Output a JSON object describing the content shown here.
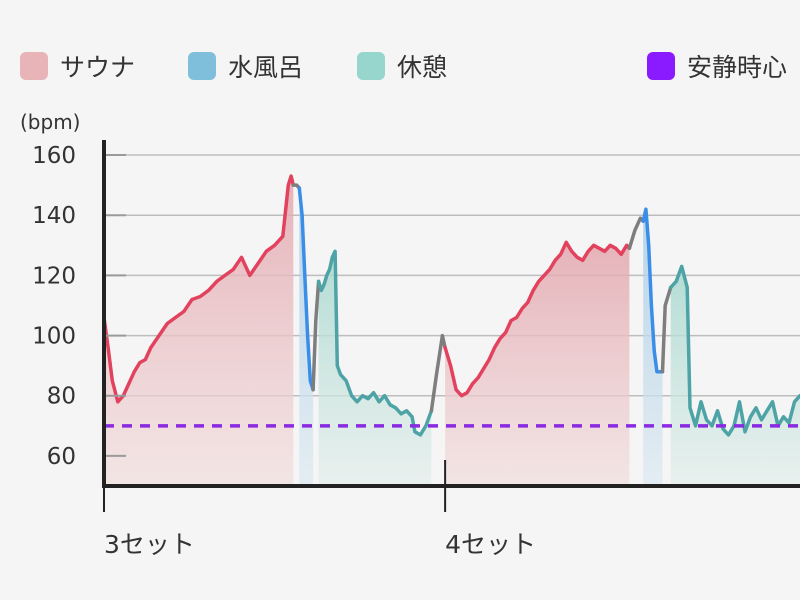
{
  "legend": [
    {
      "label": "サウナ",
      "color": "#e8b4b8"
    },
    {
      "label": "水風呂",
      "color": "#7fbfdc"
    },
    {
      "label": "休憩",
      "color": "#96d6cc"
    },
    {
      "label": "安静時心",
      "color": "#8a1aff"
    }
  ],
  "unit_label": "(bpm)",
  "chart_data": {
    "type": "line",
    "ylabel": "(bpm)",
    "ylim": [
      50,
      165
    ],
    "yticks": [
      60,
      80,
      100,
      120,
      140,
      160
    ],
    "grid": true,
    "resting_hr": 70,
    "categories": [
      "3セット",
      "4セット"
    ],
    "colors": {
      "sauna": "#e2425e",
      "cold": "#3a8ee8",
      "rest": "#4da3a5",
      "transition": "#7e7e7e",
      "resting": "#8a2be2"
    },
    "series": [
      {
        "name": "サウナ",
        "values": [
          [
            0.0,
            106
          ],
          [
            1.5,
            96
          ],
          [
            3,
            85
          ],
          [
            5,
            78
          ],
          [
            7,
            80
          ],
          [
            9,
            84
          ],
          [
            11,
            88
          ],
          [
            13,
            91
          ],
          [
            15,
            92
          ],
          [
            17,
            96
          ],
          [
            20,
            100
          ],
          [
            23,
            104
          ],
          [
            26,
            106
          ],
          [
            29,
            108
          ],
          [
            32,
            112
          ],
          [
            35,
            113
          ],
          [
            38,
            115
          ],
          [
            41,
            118
          ],
          [
            44,
            120
          ],
          [
            47,
            122
          ],
          [
            50,
            126
          ],
          [
            53,
            120
          ],
          [
            56,
            124
          ],
          [
            59,
            128
          ],
          [
            62,
            130
          ],
          [
            65,
            133
          ],
          [
            67,
            150
          ],
          [
            68,
            153
          ],
          [
            68.8,
            150
          ]
        ]
      },
      {
        "name": "transition",
        "values": [
          [
            68.8,
            150
          ],
          [
            70,
            150
          ],
          [
            71,
            149
          ]
        ]
      },
      {
        "name": "水風呂",
        "values": [
          [
            71,
            149
          ],
          [
            72,
            140
          ],
          [
            73,
            120
          ],
          [
            74,
            100
          ],
          [
            75,
            85
          ],
          [
            76,
            82
          ]
        ]
      },
      {
        "name": "transition",
        "values": [
          [
            76,
            82
          ],
          [
            77,
            105
          ],
          [
            78,
            118
          ]
        ]
      },
      {
        "name": "休憩",
        "values": [
          [
            78,
            118
          ],
          [
            79,
            115
          ],
          [
            80,
            117
          ],
          [
            81,
            120
          ],
          [
            82,
            122
          ],
          [
            83,
            126
          ],
          [
            84,
            128
          ],
          [
            84.8,
            90
          ],
          [
            86,
            87
          ],
          [
            88,
            85
          ],
          [
            90,
            80
          ],
          [
            92,
            78
          ],
          [
            94,
            80
          ],
          [
            96,
            79
          ],
          [
            98,
            81
          ],
          [
            100,
            78
          ],
          [
            102,
            80
          ],
          [
            104,
            77
          ],
          [
            106,
            76
          ],
          [
            108,
            74
          ],
          [
            110,
            75
          ],
          [
            112,
            73
          ],
          [
            113,
            68
          ],
          [
            115,
            67
          ],
          [
            117,
            70
          ],
          [
            119,
            75
          ]
        ]
      },
      {
        "name": "transition",
        "values": [
          [
            119,
            75
          ],
          [
            121,
            88
          ],
          [
            123,
            100
          ],
          [
            124,
            96
          ]
        ]
      },
      {
        "name": "サウナ",
        "values": [
          [
            124,
            96
          ],
          [
            126,
            90
          ],
          [
            128,
            82
          ],
          [
            130,
            80
          ],
          [
            132,
            81
          ],
          [
            134,
            84
          ],
          [
            136,
            86
          ],
          [
            138,
            89
          ],
          [
            140,
            92
          ],
          [
            142,
            96
          ],
          [
            144,
            99
          ],
          [
            146,
            101
          ],
          [
            148,
            105
          ],
          [
            150,
            106
          ],
          [
            152,
            109
          ],
          [
            154,
            111
          ],
          [
            156,
            115
          ],
          [
            158,
            118
          ],
          [
            160,
            120
          ],
          [
            162,
            122
          ],
          [
            164,
            125
          ],
          [
            166,
            127
          ],
          [
            168,
            131
          ],
          [
            170,
            128
          ],
          [
            172,
            126
          ],
          [
            174,
            125
          ],
          [
            176,
            128
          ],
          [
            178,
            130
          ],
          [
            180,
            129
          ],
          [
            182,
            128
          ],
          [
            184,
            130
          ],
          [
            186,
            129
          ],
          [
            188,
            127
          ],
          [
            190,
            130
          ],
          [
            191,
            129
          ]
        ]
      },
      {
        "name": "transition",
        "values": [
          [
            191,
            129
          ],
          [
            193,
            135
          ],
          [
            195,
            139
          ],
          [
            196,
            138
          ]
        ]
      },
      {
        "name": "水風呂",
        "values": [
          [
            196,
            138
          ],
          [
            197,
            142
          ],
          [
            198,
            130
          ],
          [
            199,
            110
          ],
          [
            200,
            95
          ],
          [
            201,
            88
          ],
          [
            203,
            88
          ]
        ]
      },
      {
        "name": "transition",
        "values": [
          [
            203,
            88
          ],
          [
            204,
            110
          ],
          [
            206,
            116
          ]
        ]
      },
      {
        "name": "休憩",
        "values": [
          [
            206,
            116
          ],
          [
            208,
            118
          ],
          [
            210,
            123
          ],
          [
            212,
            116
          ],
          [
            213,
            76
          ],
          [
            215,
            70
          ],
          [
            217,
            78
          ],
          [
            219,
            72
          ],
          [
            221,
            70
          ],
          [
            223,
            75
          ],
          [
            225,
            69
          ],
          [
            227,
            67
          ],
          [
            229,
            70
          ],
          [
            231,
            78
          ],
          [
            233,
            68
          ],
          [
            235,
            73
          ],
          [
            237,
            76
          ],
          [
            239,
            72
          ],
          [
            241,
            75
          ],
          [
            243,
            78
          ],
          [
            245,
            70
          ],
          [
            247,
            73
          ],
          [
            249,
            71
          ],
          [
            251,
            78
          ],
          [
            253,
            80
          ]
        ]
      }
    ]
  }
}
